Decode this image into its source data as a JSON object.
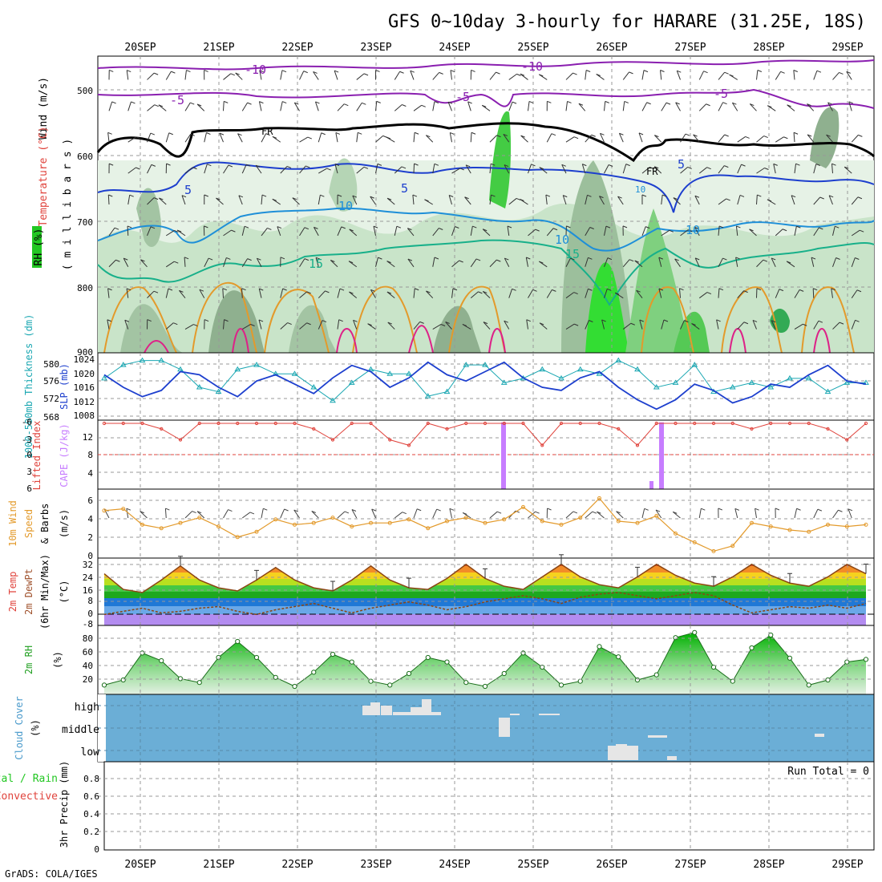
{
  "title": "GFS 0~10day 3-hourly for HARARE (31.25E, 18S)",
  "credit": "GrADS: COLA/IGES",
  "dates": [
    "20SEP",
    "21SEP",
    "22SEP",
    "23SEP",
    "24SEP",
    "25SEP",
    "26SEP",
    "27SEP",
    "28SEP",
    "29SEP"
  ],
  "colors": {
    "blue": "#1d3fce",
    "cyan": "#1aa7b2",
    "purple": "#c77dff",
    "red": "#e0433c",
    "orange": "#e39a2b",
    "green": "#22c722",
    "cloud": "#6baed6",
    "axis": "#000000",
    "grid": "#999999"
  },
  "panels": {
    "upper": {
      "label_wind": "Wind (m/s)",
      "label_temp": "Temperature (°C)",
      "label_rh": "RH (%)",
      "label_pressure": "( m i l l i b a r s )",
      "ticks": [
        "500",
        "600",
        "700",
        "800",
        "900"
      ],
      "contour_labels": [
        "-10",
        "-10",
        "-5",
        "-5",
        "-5",
        "FR",
        "FR",
        "5",
        "5",
        "5",
        "10",
        "10",
        "10",
        "10",
        "15",
        "15"
      ]
    },
    "slp": {
      "label_left": "1000-500mb Thickness (dm)",
      "label_right": "SLP (mb)",
      "ticks_left": [
        "580",
        "576",
        "572",
        "568"
      ],
      "ticks_right": [
        "1024",
        "1020",
        "1016",
        "1012",
        "1008"
      ]
    },
    "cape": {
      "label_left": "Lifted Index",
      "label_right": "CAPE (J/kg)",
      "ticks_left": [
        "-6",
        "-3",
        "0",
        "3",
        "6"
      ],
      "ticks_right": [
        "12",
        "8",
        "4"
      ]
    },
    "wind10": {
      "label_1": "10m Wind",
      "label_2": "Speed",
      "label_3": "& Barbs",
      "label_unit": "(m/s)",
      "ticks": [
        "6",
        "4",
        "2",
        "0"
      ]
    },
    "temp2m": {
      "label_1": "2m Temp",
      "label_2": "2m DewPt",
      "label_3": "(6hr Min/Max)",
      "label_unit": "(°C)",
      "ticks": [
        "32",
        "24",
        "16",
        "8",
        "0",
        "-8"
      ]
    },
    "rh2m": {
      "label": "2m RH",
      "label_unit": "(%)",
      "ticks": [
        "80",
        "60",
        "40",
        "20"
      ]
    },
    "cloud": {
      "label": "Cloud Cover",
      "label_unit": "(%)",
      "ticks": [
        "high",
        "middle",
        "low"
      ]
    },
    "precip": {
      "label_1": "3hr Precip (mm)",
      "label_2": "Total / Rain",
      "label_3": "Convective",
      "run_total": "Run Total = 0",
      "ticks": [
        "0.8",
        "0.6",
        "0.4",
        "0.2",
        "0"
      ]
    }
  },
  "chart_data": [
    {
      "type": "line",
      "name": "thickness",
      "ylabel": "1000-500mb Thickness (dm)",
      "ylim": [
        568,
        582
      ],
      "x_start": "2023-09-19T12Z",
      "step_hours": 6,
      "values": [
        577,
        580,
        581,
        581,
        579,
        575,
        574,
        579,
        580,
        578,
        578,
        575,
        572,
        576,
        579,
        578,
        578,
        573,
        574,
        580,
        580,
        576,
        577,
        579,
        577,
        579,
        578,
        581,
        579,
        575,
        576,
        580,
        574,
        575,
        576,
        575,
        577,
        577,
        574,
        576,
        576
      ]
    },
    {
      "type": "line",
      "name": "slp",
      "ylabel": "SLP (mb)",
      "ylim": [
        1006,
        1026
      ],
      "x_start": "2023-09-19T12Z",
      "step_hours": 6,
      "values": [
        1020,
        1016,
        1013,
        1015,
        1021,
        1020,
        1016,
        1013,
        1018,
        1020,
        1017,
        1014,
        1019,
        1023,
        1021,
        1016,
        1019,
        1024,
        1020,
        1018,
        1021,
        1024,
        1019,
        1016,
        1015,
        1019,
        1021,
        1016,
        1012,
        1009,
        1012,
        1017,
        1015,
        1011,
        1013,
        1017,
        1016,
        1020,
        1023,
        1018,
        1017
      ]
    },
    {
      "type": "bar",
      "name": "cape",
      "ylabel": "CAPE (J/kg)",
      "ylim": [
        0,
        16
      ],
      "x": [
        "2023-09-24T15Z",
        "2023-09-26T15Z"
      ],
      "values": [
        15.5,
        15.5
      ]
    },
    {
      "type": "line",
      "name": "lifted_index",
      "ylabel": "Lifted Index",
      "ylim": [
        6,
        -6
      ],
      "x_start": "2023-09-19T12Z",
      "step_hours": 6,
      "values": [
        6,
        6,
        6,
        5,
        3,
        6,
        6,
        6,
        6,
        6,
        6,
        5,
        3,
        6,
        6,
        3,
        2,
        6,
        5,
        6,
        6,
        6,
        6,
        2,
        6,
        6,
        6,
        5,
        2,
        6,
        6,
        6,
        6,
        6,
        5,
        6,
        6,
        6,
        5,
        3,
        6
      ]
    },
    {
      "type": "line",
      "name": "wind_speed_10m",
      "ylabel": "(m/s)",
      "ylim": [
        0,
        7
      ],
      "x_start": "2023-09-19T12Z",
      "step_hours": 6,
      "values": [
        5.2,
        5.4,
        3.6,
        3.2,
        3.8,
        4.4,
        3.4,
        2.2,
        2.8,
        4.2,
        3.6,
        3.8,
        4.4,
        3.4,
        3.8,
        3.8,
        4.2,
        3.2,
        4.0,
        4.4,
        3.8,
        4.2,
        5.6,
        4.0,
        3.6,
        4.4,
        6.6,
        4.0,
        3.8,
        4.6,
        2.6,
        1.6,
        0.6,
        1.2,
        3.8,
        3.4,
        3.0,
        2.8,
        3.6,
        3.4,
        3.6
      ]
    },
    {
      "type": "area",
      "name": "temp_2m",
      "ylabel": "(°C)",
      "ylim": [
        -9,
        34
      ],
      "x_start": "2023-09-19T12Z",
      "step_hours": 6,
      "values": [
        24,
        14,
        12,
        20,
        29,
        20,
        15,
        13,
        20,
        28,
        20,
        15,
        13,
        20,
        29,
        20,
        15,
        14,
        21,
        30,
        21,
        16,
        14,
        22,
        30,
        22,
        17,
        15,
        22,
        30,
        23,
        18,
        16,
        22,
        30,
        23,
        18,
        16,
        22,
        30,
        24
      ]
    },
    {
      "type": "line",
      "name": "dewpoint_2m",
      "ylabel": "(°C)",
      "ylim": [
        -9,
        34
      ],
      "x_start": "2023-09-19T12Z",
      "step_hours": 6,
      "values": [
        -2,
        0,
        2,
        -1,
        0,
        2,
        3,
        0,
        -2,
        1,
        3,
        5,
        2,
        -1,
        2,
        4,
        6,
        4,
        1,
        3,
        6,
        8,
        10,
        8,
        5,
        9,
        11,
        12,
        10,
        8,
        10,
        12,
        10,
        4,
        -1,
        1,
        3,
        2,
        4,
        2,
        5
      ]
    },
    {
      "type": "area",
      "name": "rh_2m",
      "ylabel": "(%)",
      "ylim": [
        0,
        100
      ],
      "x_start": "2023-09-19T12Z",
      "step_hours": 6,
      "values": [
        12,
        20,
        62,
        50,
        22,
        16,
        55,
        80,
        55,
        24,
        10,
        32,
        60,
        48,
        18,
        12,
        30,
        55,
        48,
        16,
        10,
        30,
        62,
        40,
        12,
        18,
        72,
        56,
        20,
        28,
        86,
        94,
        40,
        18,
        70,
        90,
        54,
        12,
        20,
        48,
        52
      ]
    }
  ]
}
